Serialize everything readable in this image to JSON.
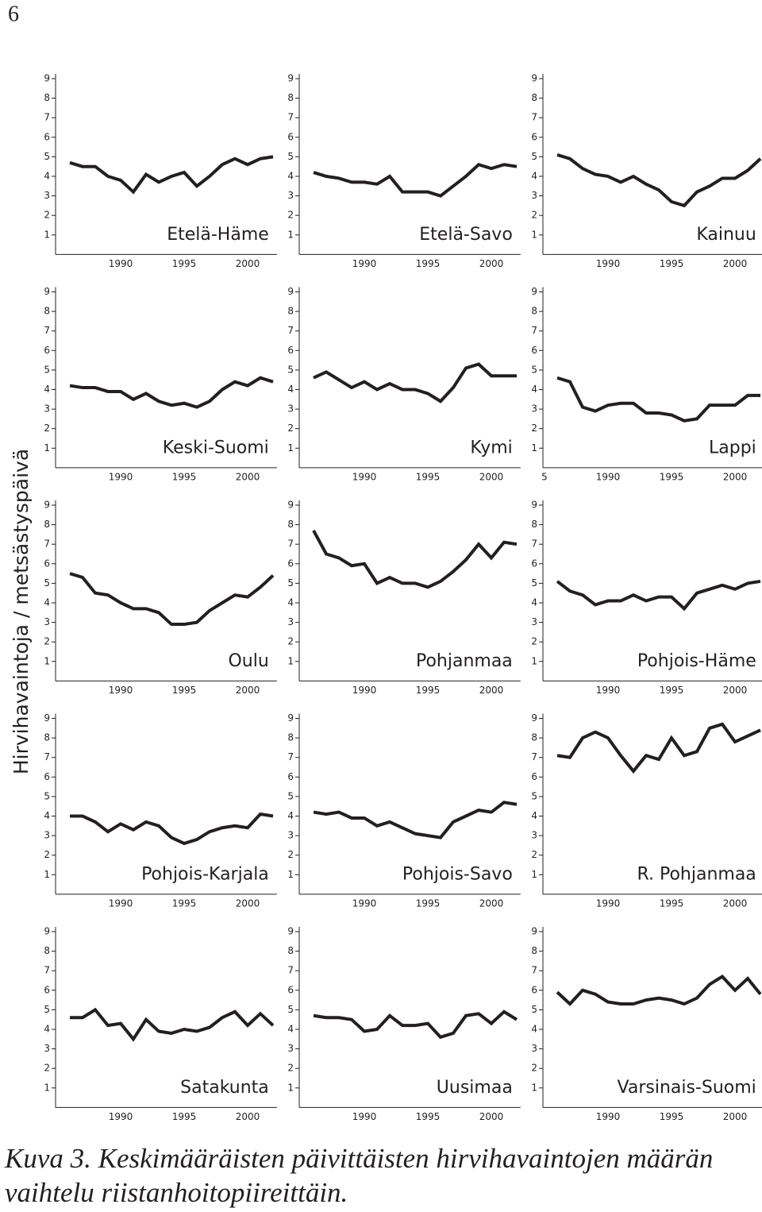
{
  "page_number": "6",
  "y_label": "Hirvihavaintoja / metsästyspäivä",
  "caption_lines": [
    "Kuva 3. Keskimääräisten päivittäisten hirvihavaintojen määrän",
    "vaihtelu riistanhoitopiireittäin."
  ],
  "chart_data": [
    {
      "type": "line",
      "title": "Etelä-Häme",
      "color": "#231f20",
      "x": [
        1986,
        1987,
        1988,
        1989,
        1990,
        1991,
        1992,
        1993,
        1994,
        1995,
        1996,
        1997,
        1998,
        1999,
        2000,
        2001,
        2002
      ],
      "values": [
        4.7,
        4.5,
        4.5,
        4.0,
        3.8,
        3.2,
        4.1,
        3.7,
        4.0,
        4.2,
        3.5,
        4.0,
        4.6,
        4.9,
        4.6,
        4.9,
        5.0
      ],
      "xlim": [
        1984.9,
        2002.3
      ],
      "ylim": [
        0,
        9
      ],
      "xticks": [
        1990,
        1995,
        2000
      ],
      "yticks": [
        1,
        2,
        3,
        4,
        5,
        6,
        7,
        8,
        9
      ]
    },
    {
      "type": "line",
      "title": "Etelä-Savo",
      "color": "#231f20",
      "x": [
        1986,
        1987,
        1988,
        1989,
        1990,
        1991,
        1992,
        1993,
        1994,
        1995,
        1996,
        1997,
        1998,
        1999,
        2000,
        2001,
        2002
      ],
      "values": [
        4.2,
        4.0,
        3.9,
        3.7,
        3.7,
        3.6,
        4.0,
        3.2,
        3.2,
        3.2,
        3.0,
        3.5,
        4.0,
        4.6,
        4.4,
        4.6,
        4.5
      ],
      "xlim": [
        1984.9,
        2002.3
      ],
      "ylim": [
        0,
        9
      ],
      "xticks": [
        1990,
        1995,
        2000
      ],
      "yticks": [
        1,
        2,
        3,
        4,
        5,
        6,
        7,
        8,
        9
      ]
    },
    {
      "type": "line",
      "title": "Kainuu",
      "color": "#231f20",
      "x": [
        1986,
        1987,
        1988,
        1989,
        1990,
        1991,
        1992,
        1993,
        1994,
        1995,
        1996,
        1997,
        1998,
        1999,
        2000,
        2001,
        2002
      ],
      "values": [
        5.1,
        4.9,
        4.4,
        4.1,
        4.0,
        3.7,
        4.0,
        3.6,
        3.3,
        2.7,
        2.5,
        3.2,
        3.5,
        3.9,
        3.9,
        4.3,
        4.9
      ],
      "xlim": [
        1984.9,
        2002.3
      ],
      "ylim": [
        0,
        9
      ],
      "xticks": [
        1990,
        1995,
        2000
      ],
      "yticks": [
        1,
        2,
        3,
        4,
        5,
        6,
        7,
        8,
        9
      ]
    },
    {
      "type": "line",
      "title": "Keski-Suomi",
      "color": "#231f20",
      "x": [
        1986,
        1987,
        1988,
        1989,
        1990,
        1991,
        1992,
        1993,
        1994,
        1995,
        1996,
        1997,
        1998,
        1999,
        2000,
        2001,
        2002
      ],
      "values": [
        4.2,
        4.1,
        4.1,
        3.9,
        3.9,
        3.5,
        3.8,
        3.4,
        3.2,
        3.3,
        3.1,
        3.4,
        4.0,
        4.4,
        4.2,
        4.6,
        4.4
      ],
      "xlim": [
        1984.9,
        2002.3
      ],
      "ylim": [
        0,
        9
      ],
      "xticks": [
        1990,
        1995,
        2000
      ],
      "yticks": [
        1,
        2,
        3,
        4,
        5,
        6,
        7,
        8,
        9
      ]
    },
    {
      "type": "line",
      "title": "Kymi",
      "color": "#231f20",
      "x": [
        1986,
        1987,
        1988,
        1989,
        1990,
        1991,
        1992,
        1993,
        1994,
        1995,
        1996,
        1997,
        1998,
        1999,
        2000,
        2001,
        2002
      ],
      "values": [
        4.6,
        4.9,
        4.5,
        4.1,
        4.4,
        4.0,
        4.3,
        4.0,
        4.0,
        3.8,
        3.4,
        4.1,
        5.1,
        5.3,
        4.7,
        4.7,
        4.7
      ],
      "xlim": [
        1984.9,
        2002.3
      ],
      "ylim": [
        0,
        9
      ],
      "xticks": [
        1990,
        1995,
        2000
      ],
      "yticks": [
        1,
        2,
        3,
        4,
        5,
        6,
        7,
        8,
        9
      ]
    },
    {
      "type": "line",
      "title": "Lappi",
      "color": "#231f20",
      "x": [
        1986,
        1987,
        1988,
        1989,
        1990,
        1991,
        1992,
        1993,
        1994,
        1995,
        1996,
        1997,
        1998,
        1999,
        2000,
        2001,
        2002
      ],
      "values": [
        4.6,
        4.4,
        3.1,
        2.9,
        3.2,
        3.3,
        3.3,
        2.8,
        2.8,
        2.7,
        2.4,
        2.5,
        3.2,
        3.2,
        3.2,
        3.7,
        3.7
      ],
      "xlim": [
        1984.9,
        2002.3
      ],
      "ylim": [
        0,
        9
      ],
      "xticks": [
        {
          "value": 1985,
          "label": "5"
        },
        1990,
        1995,
        2000
      ],
      "yticks": [
        1,
        2,
        3,
        4,
        5,
        6,
        7,
        8,
        9
      ]
    },
    {
      "type": "line",
      "title": "Oulu",
      "color": "#231f20",
      "x": [
        1986,
        1987,
        1988,
        1989,
        1990,
        1991,
        1992,
        1993,
        1994,
        1995,
        1996,
        1997,
        1998,
        1999,
        2000,
        2001,
        2002
      ],
      "values": [
        5.5,
        5.3,
        4.5,
        4.4,
        4.0,
        3.7,
        3.7,
        3.5,
        2.9,
        2.9,
        3.0,
        3.6,
        4.0,
        4.4,
        4.3,
        4.8,
        5.4
      ],
      "xlim": [
        1984.9,
        2002.3
      ],
      "ylim": [
        0,
        9
      ],
      "xticks": [
        1990,
        1995,
        2000
      ],
      "yticks": [
        1,
        2,
        3,
        4,
        5,
        6,
        7,
        8,
        9
      ]
    },
    {
      "type": "line",
      "title": "Pohjanmaa",
      "color": "#231f20",
      "x": [
        1986,
        1987,
        1988,
        1989,
        1990,
        1991,
        1992,
        1993,
        1994,
        1995,
        1996,
        1997,
        1998,
        1999,
        2000,
        2001,
        2002
      ],
      "values": [
        7.7,
        6.5,
        6.3,
        5.9,
        6.0,
        5.0,
        5.3,
        5.0,
        5.0,
        4.8,
        5.1,
        5.6,
        6.2,
        7.0,
        6.3,
        7.1,
        7.0
      ],
      "xlim": [
        1984.9,
        2002.3
      ],
      "ylim": [
        0,
        9
      ],
      "xticks": [
        1990,
        1995,
        2000
      ],
      "yticks": [
        1,
        2,
        3,
        4,
        5,
        6,
        7,
        8,
        9
      ]
    },
    {
      "type": "line",
      "title": "Pohjois-Häme",
      "color": "#231f20",
      "x": [
        1986,
        1987,
        1988,
        1989,
        1990,
        1991,
        1992,
        1993,
        1994,
        1995,
        1996,
        1997,
        1998,
        1999,
        2000,
        2001,
        2002
      ],
      "values": [
        5.1,
        4.6,
        4.4,
        3.9,
        4.1,
        4.1,
        4.4,
        4.1,
        4.3,
        4.3,
        3.7,
        4.5,
        4.7,
        4.9,
        4.7,
        5.0,
        5.1
      ],
      "xlim": [
        1984.9,
        2002.3
      ],
      "ylim": [
        0,
        9
      ],
      "xticks": [
        1990,
        1995,
        2000
      ],
      "yticks": [
        1,
        2,
        3,
        4,
        5,
        6,
        7,
        8,
        9
      ]
    },
    {
      "type": "line",
      "title": "Pohjois-Karjala",
      "color": "#231f20",
      "x": [
        1986,
        1987,
        1988,
        1989,
        1990,
        1991,
        1992,
        1993,
        1994,
        1995,
        1996,
        1997,
        1998,
        1999,
        2000,
        2001,
        2002
      ],
      "values": [
        4.0,
        4.0,
        3.7,
        3.2,
        3.6,
        3.3,
        3.7,
        3.5,
        2.9,
        2.6,
        2.8,
        3.2,
        3.4,
        3.5,
        3.4,
        4.1,
        4.0
      ],
      "xlim": [
        1984.9,
        2002.3
      ],
      "ylim": [
        0,
        9
      ],
      "xticks": [
        1990,
        1995,
        2000
      ],
      "yticks": [
        1,
        2,
        3,
        4,
        5,
        6,
        7,
        8,
        9
      ]
    },
    {
      "type": "line",
      "title": "Pohjois-Savo",
      "color": "#231f20",
      "x": [
        1986,
        1987,
        1988,
        1989,
        1990,
        1991,
        1992,
        1993,
        1994,
        1995,
        1996,
        1997,
        1998,
        1999,
        2000,
        2001,
        2002
      ],
      "values": [
        4.2,
        4.1,
        4.2,
        3.9,
        3.9,
        3.5,
        3.7,
        3.4,
        3.1,
        3.0,
        2.9,
        3.7,
        4.0,
        4.3,
        4.2,
        4.7,
        4.6
      ],
      "xlim": [
        1984.9,
        2002.3
      ],
      "ylim": [
        0,
        9
      ],
      "xticks": [
        1990,
        1995,
        2000
      ],
      "yticks": [
        1,
        2,
        3,
        4,
        5,
        6,
        7,
        8,
        9
      ]
    },
    {
      "type": "line",
      "title": "R. Pohjanmaa",
      "color": "#231f20",
      "x": [
        1986,
        1987,
        1988,
        1989,
        1990,
        1991,
        1992,
        1993,
        1994,
        1995,
        1996,
        1997,
        1998,
        1999,
        2000,
        2001,
        2002
      ],
      "values": [
        7.1,
        7.0,
        8.0,
        8.3,
        8.0,
        7.1,
        6.3,
        7.1,
        6.9,
        8.0,
        7.1,
        7.3,
        8.5,
        8.7,
        7.8,
        8.1,
        8.4
      ],
      "xlim": [
        1984.9,
        2002.3
      ],
      "ylim": [
        0,
        9
      ],
      "xticks": [
        1990,
        1995,
        2000
      ],
      "yticks": [
        1,
        2,
        3,
        4,
        5,
        6,
        7,
        8,
        9
      ]
    },
    {
      "type": "line",
      "title": "Satakunta",
      "color": "#231f20",
      "x": [
        1986,
        1987,
        1988,
        1989,
        1990,
        1991,
        1992,
        1993,
        1994,
        1995,
        1996,
        1997,
        1998,
        1999,
        2000,
        2001,
        2002
      ],
      "values": [
        4.6,
        4.6,
        5.0,
        4.2,
        4.3,
        3.5,
        4.5,
        3.9,
        3.8,
        4.0,
        3.9,
        4.1,
        4.6,
        4.9,
        4.2,
        4.8,
        4.2
      ],
      "xlim": [
        1984.9,
        2002.3
      ],
      "ylim": [
        0,
        9
      ],
      "xticks": [
        1990,
        1995,
        2000
      ],
      "yticks": [
        1,
        2,
        3,
        4,
        5,
        6,
        7,
        8,
        9
      ]
    },
    {
      "type": "line",
      "title": "Uusimaa",
      "color": "#231f20",
      "x": [
        1986,
        1987,
        1988,
        1989,
        1990,
        1991,
        1992,
        1993,
        1994,
        1995,
        1996,
        1997,
        1998,
        1999,
        2000,
        2001,
        2002
      ],
      "values": [
        4.7,
        4.6,
        4.6,
        4.5,
        3.9,
        4.0,
        4.7,
        4.2,
        4.2,
        4.3,
        3.6,
        3.8,
        4.7,
        4.8,
        4.3,
        4.9,
        4.5
      ],
      "xlim": [
        1984.9,
        2002.3
      ],
      "ylim": [
        0,
        9
      ],
      "xticks": [
        1990,
        1995,
        2000
      ],
      "yticks": [
        1,
        2,
        3,
        4,
        5,
        6,
        7,
        8,
        9
      ]
    },
    {
      "type": "line",
      "title": "Varsinais-Suomi",
      "color": "#231f20",
      "x": [
        1986,
        1987,
        1988,
        1989,
        1990,
        1991,
        1992,
        1993,
        1994,
        1995,
        1996,
        1997,
        1998,
        1999,
        2000,
        2001,
        2002
      ],
      "values": [
        5.9,
        5.3,
        6.0,
        5.8,
        5.4,
        5.3,
        5.3,
        5.5,
        5.6,
        5.5,
        5.3,
        5.6,
        6.3,
        6.7,
        6.0,
        6.6,
        5.8
      ],
      "xlim": [
        1984.9,
        2002.3
      ],
      "ylim": [
        0,
        9
      ],
      "xticks": [
        1990,
        1995,
        2000
      ],
      "yticks": [
        1,
        2,
        3,
        4,
        5,
        6,
        7,
        8,
        9
      ]
    }
  ]
}
